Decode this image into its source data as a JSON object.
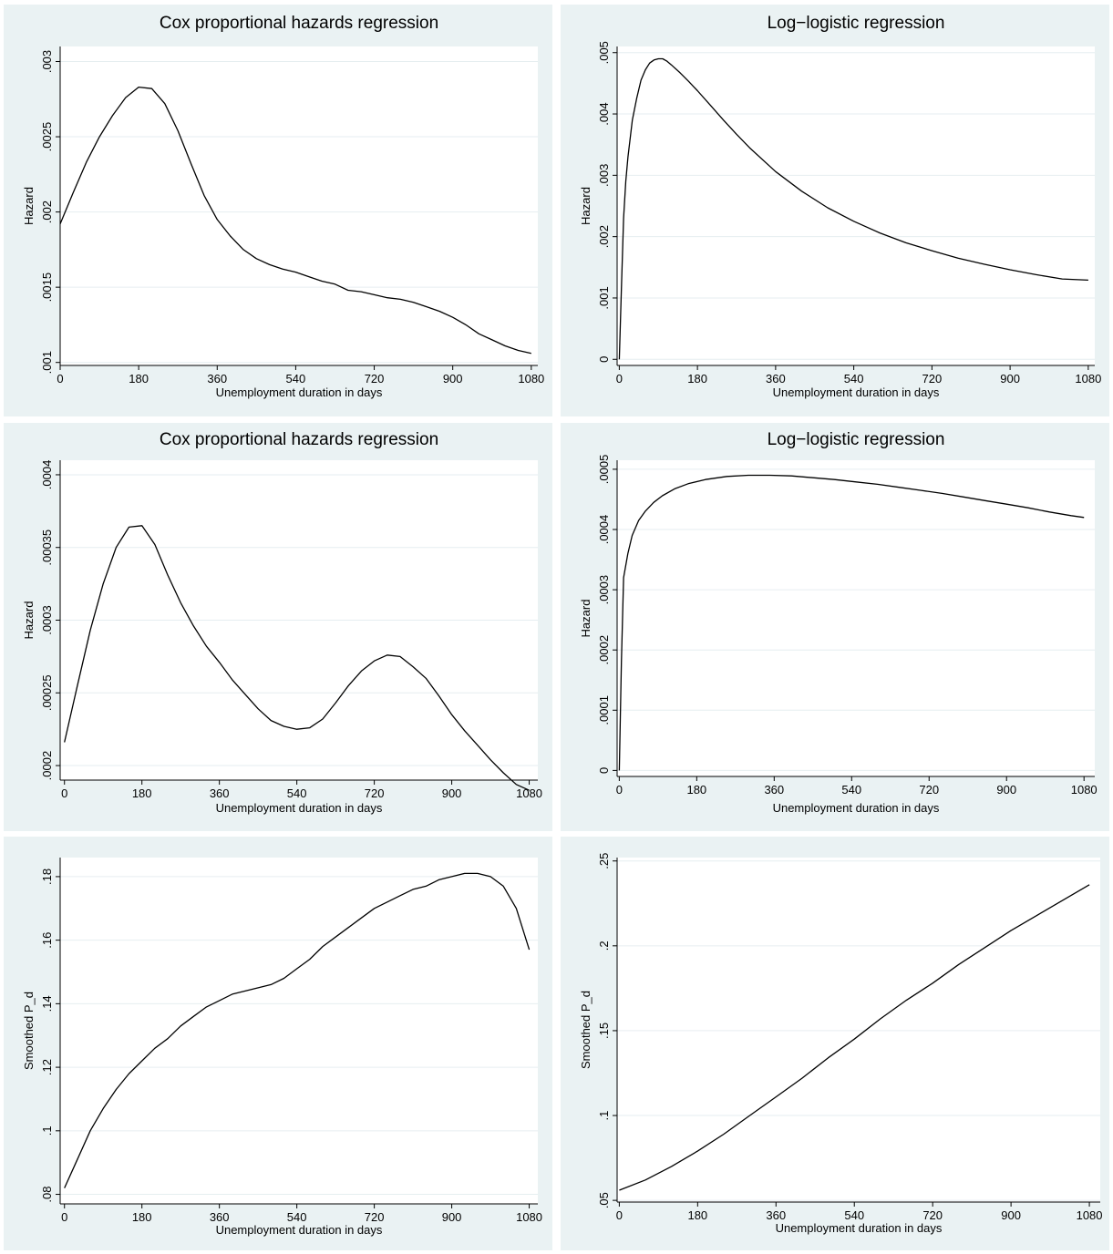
{
  "chart_data": [
    {
      "type": "line",
      "title": "Cox proportional hazards regression",
      "xlabel": "Unemployment duration in days",
      "ylabel": "Hazard",
      "xlim": [
        0,
        1095
      ],
      "ylim": [
        0.00098,
        0.0031
      ],
      "xticks": [
        0,
        180,
        360,
        540,
        720,
        900,
        1080
      ],
      "xtick_labels": [
        "0",
        "180",
        "360",
        "540",
        "720",
        "900",
        "1080"
      ],
      "yticks": [
        0.001,
        0.0015,
        0.002,
        0.0025,
        0.003
      ],
      "ytick_labels": [
        ".001",
        ".0015",
        ".002",
        ".0025",
        ".003"
      ],
      "grid": true,
      "series": [
        {
          "x": [
            0,
            30,
            60,
            90,
            120,
            150,
            180,
            210,
            240,
            270,
            300,
            330,
            360,
            390,
            420,
            450,
            480,
            510,
            540,
            570,
            600,
            630,
            660,
            690,
            720,
            750,
            780,
            810,
            840,
            870,
            900,
            930,
            960,
            990,
            1020,
            1050,
            1080
          ],
          "y": [
            0.00192,
            0.00213,
            0.00233,
            0.0025,
            0.00264,
            0.00276,
            0.00283,
            0.00282,
            0.00272,
            0.00254,
            0.00232,
            0.00211,
            0.00195,
            0.00184,
            0.00175,
            0.00169,
            0.00165,
            0.00162,
            0.0016,
            0.00157,
            0.00154,
            0.00152,
            0.00148,
            0.00147,
            0.00145,
            0.00143,
            0.00142,
            0.0014,
            0.00137,
            0.00134,
            0.0013,
            0.00125,
            0.00119,
            0.00115,
            0.00111,
            0.00108,
            0.00106
          ]
        }
      ]
    },
    {
      "type": "line",
      "title": "Log−logistic regression",
      "xlabel": "Unemployment duration in days",
      "ylabel": "Hazard",
      "xlim": [
        -5,
        1095
      ],
      "ylim": [
        -0.0001,
        0.0051
      ],
      "xticks": [
        0,
        180,
        360,
        540,
        720,
        900,
        1080
      ],
      "xtick_labels": [
        "0",
        "180",
        "360",
        "540",
        "720",
        "900",
        "1080"
      ],
      "yticks": [
        0,
        0.001,
        0.002,
        0.003,
        0.004,
        0.005
      ],
      "ytick_labels": [
        "0",
        ".001",
        ".002",
        ".003",
        ".004",
        ".005"
      ],
      "grid": true,
      "series": [
        {
          "x": [
            0,
            5,
            10,
            15,
            20,
            30,
            40,
            50,
            60,
            70,
            80,
            90,
            100,
            110,
            120,
            140,
            160,
            180,
            210,
            240,
            270,
            300,
            360,
            420,
            480,
            540,
            600,
            660,
            720,
            780,
            840,
            900,
            960,
            1020,
            1080
          ],
          "y": [
            0.0,
            0.0012,
            0.0023,
            0.0029,
            0.0033,
            0.0039,
            0.00425,
            0.00455,
            0.00472,
            0.00483,
            0.00488,
            0.0049,
            0.0049,
            0.00486,
            0.0048,
            0.00467,
            0.00453,
            0.00438,
            0.00414,
            0.0039,
            0.00367,
            0.00345,
            0.00306,
            0.00274,
            0.00247,
            0.00225,
            0.00206,
            0.0019,
            0.00177,
            0.00165,
            0.00155,
            0.00146,
            0.00138,
            0.00131,
            0.00129
          ]
        }
      ]
    },
    {
      "type": "line",
      "title": "Cox proportional hazards regression",
      "xlabel": "Unemployment duration in days",
      "ylabel": "Hazard",
      "xlim": [
        -10,
        1100
      ],
      "ylim": [
        0.00019,
        0.00041
      ],
      "xticks": [
        0,
        180,
        360,
        540,
        720,
        900,
        1080
      ],
      "xtick_labels": [
        "0",
        "180",
        "360",
        "540",
        "720",
        "900",
        "1080"
      ],
      "yticks": [
        0.0002,
        0.00025,
        0.0003,
        0.00035,
        0.0004
      ],
      "ytick_labels": [
        ".0002",
        ".00025",
        ".0003",
        ".00035",
        ".0004"
      ],
      "grid": true,
      "series": [
        {
          "x": [
            0,
            30,
            60,
            90,
            120,
            150,
            180,
            210,
            240,
            270,
            300,
            330,
            360,
            390,
            420,
            450,
            480,
            510,
            540,
            570,
            600,
            630,
            660,
            690,
            720,
            750,
            780,
            810,
            840,
            870,
            900,
            930,
            960,
            990,
            1020,
            1050,
            1080
          ],
          "y": [
            0.000216,
            0.000255,
            0.000293,
            0.000325,
            0.00035,
            0.000364,
            0.000365,
            0.000352,
            0.000331,
            0.000312,
            0.000296,
            0.000282,
            0.000271,
            0.000259,
            0.000249,
            0.000239,
            0.000231,
            0.000227,
            0.000225,
            0.000226,
            0.000232,
            0.000243,
            0.000255,
            0.000265,
            0.000272,
            0.000276,
            0.000275,
            0.000268,
            0.00026,
            0.000248,
            0.000235,
            0.000224,
            0.000214,
            0.000204,
            0.000195,
            0.000187,
            0.000183
          ]
        }
      ]
    },
    {
      "type": "line",
      "title": "Log−logistic regression",
      "xlabel": "Unemployment duration in days",
      "ylabel": "Hazard",
      "xlim": [
        -5,
        1105
      ],
      "ylim": [
        -1e-05,
        0.000515
      ],
      "xticks": [
        0,
        180,
        360,
        540,
        720,
        900,
        1080
      ],
      "xtick_labels": [
        "0",
        "180",
        "360",
        "540",
        "720",
        "900",
        "1080"
      ],
      "yticks": [
        0,
        0.0001,
        0.0002,
        0.0003,
        0.0004,
        0.0005
      ],
      "ytick_labels": [
        "0",
        ".0001",
        ".0002",
        ".0003",
        ".0004",
        ".0005"
      ],
      "grid": true,
      "series": [
        {
          "x": [
            0,
            5,
            10,
            20,
            30,
            45,
            60,
            80,
            100,
            130,
            160,
            200,
            250,
            300,
            350,
            400,
            450,
            500,
            550,
            600,
            650,
            700,
            750,
            800,
            850,
            900,
            950,
            1000,
            1050,
            1080
          ],
          "y": [
            0.0,
            0.00018,
            0.00032,
            0.00036,
            0.00039,
            0.000415,
            0.00043,
            0.000445,
            0.000456,
            0.000468,
            0.000476,
            0.000483,
            0.000488,
            0.00049,
            0.00049,
            0.000489,
            0.000486,
            0.000483,
            0.000479,
            0.000475,
            0.00047,
            0.000465,
            0.00046,
            0.000454,
            0.000448,
            0.000442,
            0.000436,
            0.000429,
            0.000423,
            0.00042
          ]
        }
      ]
    },
    {
      "type": "line",
      "title": "",
      "xlabel": "Unemployment duration in days",
      "ylabel": "Smoothed P_d",
      "xlim": [
        -10,
        1100
      ],
      "ylim": [
        0.077,
        0.186
      ],
      "xticks": [
        0,
        180,
        360,
        540,
        720,
        900,
        1080
      ],
      "xtick_labels": [
        "0",
        "180",
        "360",
        "540",
        "720",
        "900",
        "1080"
      ],
      "yticks": [
        0.08,
        0.1,
        0.12,
        0.14,
        0.16,
        0.18
      ],
      "ytick_labels": [
        ".08",
        ".1",
        ".12",
        ".14",
        ".16",
        ".18"
      ],
      "grid": true,
      "series": [
        {
          "x": [
            0,
            30,
            60,
            90,
            120,
            150,
            180,
            210,
            240,
            270,
            300,
            330,
            360,
            390,
            420,
            450,
            480,
            510,
            540,
            570,
            600,
            630,
            660,
            690,
            720,
            750,
            780,
            810,
            840,
            870,
            900,
            930,
            960,
            990,
            1020,
            1050,
            1080
          ],
          "y": [
            0.082,
            0.091,
            0.1,
            0.107,
            0.113,
            0.118,
            0.122,
            0.126,
            0.129,
            0.133,
            0.136,
            0.139,
            0.141,
            0.143,
            0.144,
            0.145,
            0.146,
            0.148,
            0.151,
            0.154,
            0.158,
            0.161,
            0.164,
            0.167,
            0.17,
            0.172,
            0.174,
            0.176,
            0.177,
            0.179,
            0.18,
            0.181,
            0.181,
            0.18,
            0.177,
            0.17,
            0.157
          ]
        }
      ]
    },
    {
      "type": "line",
      "title": "",
      "xlabel": "Unemployment duration in days",
      "ylabel": "Smoothed P_d",
      "xlim": [
        -5,
        1105
      ],
      "ylim": [
        0.049,
        0.252
      ],
      "xticks": [
        0,
        180,
        360,
        540,
        720,
        900,
        1080
      ],
      "xtick_labels": [
        "0",
        "180",
        "360",
        "540",
        "720",
        "900",
        "1080"
      ],
      "yticks": [
        0.05,
        0.1,
        0.15,
        0.2,
        0.25
      ],
      "ytick_labels": [
        ".05",
        ".1",
        ".15",
        ".2",
        ".25"
      ],
      "grid": true,
      "series": [
        {
          "x": [
            0,
            60,
            120,
            180,
            240,
            300,
            360,
            420,
            480,
            540,
            600,
            660,
            720,
            780,
            840,
            900,
            960,
            1020,
            1080
          ],
          "y": [
            0.056,
            0.062,
            0.07,
            0.079,
            0.089,
            0.1,
            0.111,
            0.122,
            0.134,
            0.145,
            0.157,
            0.168,
            0.178,
            0.189,
            0.199,
            0.209,
            0.218,
            0.227,
            0.236
          ]
        }
      ]
    }
  ]
}
